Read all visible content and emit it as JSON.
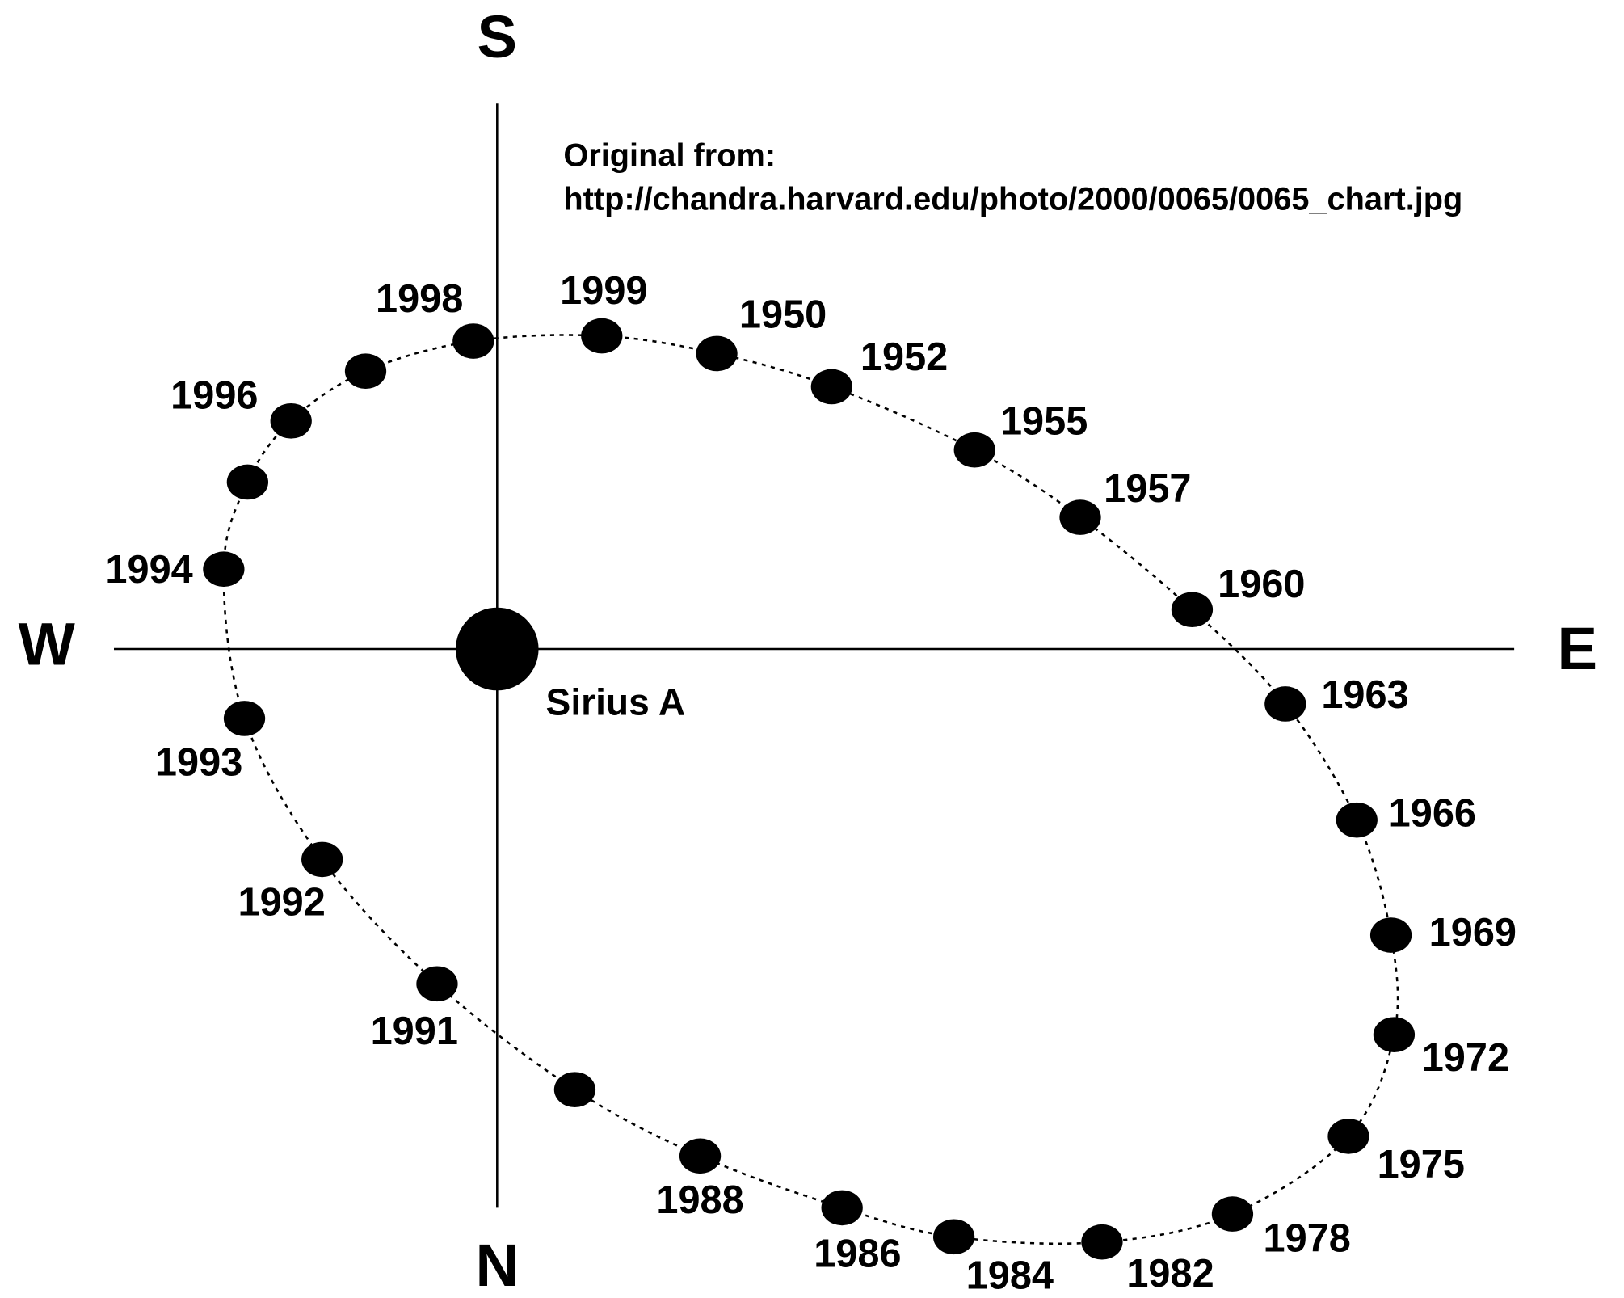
{
  "compass": {
    "south": "S",
    "north": "N",
    "west": "W",
    "east": "E"
  },
  "source_note": [
    "Original from:",
    "http://chandra.harvard.edu/photo/2000/0065/0065_chart.jpg"
  ],
  "star_label": "Sirius A",
  "years": [
    "1998",
    "1996",
    "1994",
    "1993",
    "1992",
    "1991",
    "1988",
    "1986",
    "1984",
    "1982",
    "1978",
    "1975",
    "1972",
    "1969",
    "1966",
    "1963",
    "1960",
    "1957",
    "1955",
    "1952",
    "1950",
    "1999"
  ]
}
